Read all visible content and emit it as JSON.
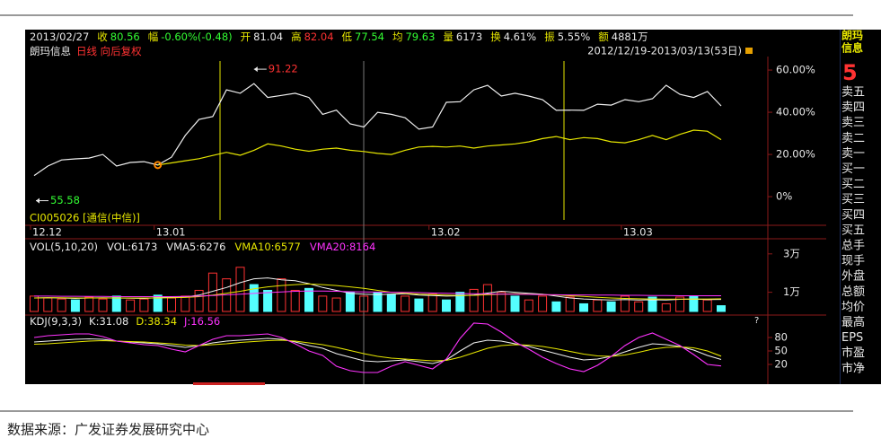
{
  "header": {
    "date": "2013/02/27",
    "items": [
      {
        "label": "收",
        "value": "80.56",
        "color": "#33ff33"
      },
      {
        "label": "幅",
        "value": "-0.60%(-0.48)",
        "color": "#33ff33"
      },
      {
        "label": "开",
        "value": "81.04",
        "color": "#e8e8e8"
      },
      {
        "label": "高",
        "value": "82.04",
        "color": "#ff3232"
      },
      {
        "label": "低",
        "value": "77.54",
        "color": "#33ff33"
      },
      {
        "label": "均",
        "value": "79.63",
        "color": "#33ff33"
      },
      {
        "label": "量",
        "value": "6173",
        "color": "#e8e8e8"
      },
      {
        "label": "换",
        "value": "4.61%",
        "color": "#e8e8e8"
      },
      {
        "label": "振",
        "value": "5.55%",
        "color": "#e8e8e8"
      },
      {
        "label": "额",
        "value": "4881万",
        "color": "#e8e8e8"
      }
    ],
    "stock": "朗玛信息",
    "mode": "日线 向后复权",
    "range": "2012/12/19-2013/03/13(53日)"
  },
  "price_panel": {
    "categories": [
      "12.12",
      null,
      null,
      null,
      null,
      null,
      null,
      null,
      null,
      "13.01",
      null,
      null,
      null,
      null,
      null,
      null,
      null,
      null,
      null,
      null,
      null,
      null,
      null,
      null,
      null,
      null,
      null,
      null,
      null,
      "13.02",
      null,
      null,
      null,
      null,
      null,
      null,
      null,
      null,
      null,
      null,
      null,
      null,
      null,
      "13.03",
      null,
      null,
      null,
      null,
      null,
      null,
      null
    ],
    "ylim": [
      -12.3,
      66.4
    ],
    "yticks": [
      {
        "value": 60,
        "label": "60.00%"
      },
      {
        "value": 40,
        "label": "40.00%"
      },
      {
        "value": 20,
        "label": "20.00%"
      },
      {
        "value": 0,
        "label": "0%"
      }
    ],
    "series": [
      {
        "color": "#f0f0f0",
        "values": [
          10,
          14.5,
          17.4,
          17.9,
          18.3,
          20,
          14.5,
          16.2,
          16.6,
          15,
          18.7,
          29,
          36.6,
          38,
          50.6,
          49,
          53.6,
          47,
          48,
          49,
          47,
          39,
          41,
          34.5,
          33,
          40,
          39,
          37.4,
          32,
          33,
          44.7,
          45,
          50.6,
          52.8,
          47.7,
          49,
          47.7,
          46,
          40.9,
          41,
          40.9,
          43.8,
          43.4,
          46,
          45,
          46.4,
          52.8,
          48.5,
          47,
          49.8,
          43
        ]
      },
      {
        "name": "CI005026 [通信(中信)]",
        "color": "#e6e600",
        "values": [
          null,
          null,
          null,
          null,
          null,
          null,
          null,
          null,
          null,
          15,
          16,
          17,
          18,
          19.5,
          21,
          19.6,
          22,
          25,
          24,
          22.5,
          21.5,
          22.5,
          23,
          22,
          21.4,
          20.5,
          20,
          22,
          23.5,
          23.8,
          23.5,
          24,
          23,
          24,
          24.5,
          25,
          26,
          27.5,
          28.5,
          27,
          28,
          27.5,
          26,
          25.5,
          27,
          29,
          27,
          29.5,
          31.5,
          31,
          27
        ]
      }
    ],
    "annotations": [
      {
        "label": "91.22",
        "color": "#ff3232",
        "index": 16
      },
      {
        "label": "55.58",
        "color": "#33ff33",
        "index": 0
      }
    ]
  },
  "volume_panel": {
    "title": "VOL(5,10,20)",
    "labels": [
      {
        "text": "VOL:6173",
        "color": "#e8e8e8"
      },
      {
        "text": "VMA5:6276",
        "color": "#e8e8e8"
      },
      {
        "text": "VMA10:6577",
        "color": "#e6e600"
      },
      {
        "text": "VMA20:8164",
        "color": "#ff33ff"
      }
    ],
    "ylim": [
      0,
      36000
    ],
    "yticks": [
      {
        "value": 30000,
        "label": "3万"
      },
      {
        "value": 10000,
        "label": "1万"
      }
    ],
    "values": [
      8000,
      7000,
      6500,
      6000,
      7500,
      6500,
      8000,
      6000,
      6500,
      8500,
      7000,
      8000,
      11000,
      20000,
      17000,
      23000,
      14000,
      11000,
      17000,
      11000,
      12000,
      8000,
      7000,
      10000,
      8000,
      10000,
      9000,
      8000,
      6500,
      9000,
      6000,
      10000,
      11500,
      14000,
      10000,
      8000,
      6000,
      8000,
      5000,
      7500,
      4000,
      6000,
      5000,
      8000,
      5000,
      7500,
      4000,
      7500,
      8000,
      6000,
      3000
    ],
    "bar_colors": [
      "#ff3232",
      "#ff3232",
      "#ff3232",
      "#54ffff",
      "#ff3232",
      "#ff3232",
      "#54ffff",
      "#ff3232",
      "#ff3232",
      "#54ffff",
      "#ff3232",
      "#ff3232",
      "#ff3232",
      "#ff3232",
      "#ff3232",
      "#ff3232",
      "#54ffff",
      "#54ffff",
      "#ff3232",
      "#ff3232",
      "#54ffff",
      "#ff3232",
      "#ff3232",
      "#54ffff",
      "#ff3232",
      "#54ffff",
      "#54ffff",
      "#ff3232",
      "#54ffff",
      "#ff3232",
      "#54ffff",
      "#54ffff",
      "#ff3232",
      "#ff3232",
      "#ff3232",
      "#54ffff",
      "#ff3232",
      "#ff3232",
      "#54ffff",
      "#ff3232",
      "#54ffff",
      "#ff3232",
      "#54ffff",
      "#ff3232",
      "#ff3232",
      "#54ffff",
      "#ff3232",
      "#ff3232",
      "#54ffff",
      "#ff3232",
      "#54ffff"
    ],
    "lines": [
      {
        "color": "#f0f0f0",
        "values": [
          7000,
          7200,
          7000,
          6800,
          7000,
          7100,
          7000,
          6900,
          6800,
          7200,
          7300,
          7500,
          8500,
          10500,
          12500,
          15000,
          17000,
          17500,
          16500,
          16000,
          14500,
          12500,
          11000,
          9500,
          9000,
          8800,
          9000,
          9200,
          8500,
          8300,
          8000,
          8200,
          8600,
          9600,
          10500,
          10000,
          9500,
          9000,
          8000,
          7000,
          6500,
          6200,
          6000,
          6200,
          6000,
          6100,
          6000,
          6300,
          6400,
          6200,
          6276
        ]
      },
      {
        "color": "#e6e600",
        "values": [
          7000,
          7100,
          7100,
          7000,
          7000,
          7000,
          7000,
          7000,
          7000,
          7000,
          7100,
          7300,
          7700,
          8500,
          9500,
          10500,
          11800,
          12800,
          13500,
          14000,
          14300,
          14000,
          13500,
          12800,
          12000,
          11000,
          10000,
          9500,
          9000,
          8800,
          8500,
          8300,
          8400,
          8700,
          9000,
          9200,
          9000,
          8800,
          8600,
          8200,
          7800,
          7400,
          7000,
          6800,
          6600,
          6500,
          6400,
          6400,
          6500,
          6500,
          6577
        ]
      },
      {
        "color": "#ff33ff",
        "values": [
          8000,
          8000,
          7900,
          7900,
          7800,
          7800,
          7700,
          7700,
          7700,
          7700,
          7700,
          7800,
          8000,
          8300,
          8700,
          9000,
          9400,
          9800,
          10200,
          10500,
          10600,
          10600,
          10500,
          10300,
          10200,
          10100,
          10000,
          9900,
          9800,
          9600,
          9500,
          9300,
          9200,
          9100,
          9000,
          9000,
          8900,
          8800,
          8700,
          8600,
          8600,
          8500,
          8500,
          8400,
          8400,
          8300,
          8300,
          8200,
          8200,
          8200,
          8164
        ]
      }
    ]
  },
  "kdj_panel": {
    "title": "KDJ(9,3,3)",
    "labels": [
      {
        "text": "K:31.08",
        "color": "#e8e8e8"
      },
      {
        "text": "D:38.34",
        "color": "#e6e600"
      },
      {
        "text": "J:16.56",
        "color": "#ff33ff"
      }
    ],
    "ylim": [
      -24,
      128
    ],
    "yticks": [
      80,
      50,
      20
    ],
    "marker": "?",
    "lines": [
      {
        "color": "#f0f0f0",
        "values": [
          70,
          72,
          74,
          76,
          77,
          76,
          72,
          70,
          68,
          66,
          62,
          58,
          62,
          68,
          72,
          74,
          76,
          78,
          76,
          70,
          62,
          56,
          44,
          36,
          28,
          26,
          28,
          30,
          26,
          22,
          30,
          50,
          68,
          74,
          72,
          66,
          60,
          52,
          44,
          36,
          30,
          32,
          38,
          48,
          58,
          66,
          64,
          60,
          52,
          40,
          31.08
        ]
      },
      {
        "color": "#e6e600",
        "values": [
          65,
          66,
          68,
          70,
          72,
          73,
          72,
          71,
          70,
          68,
          66,
          63,
          62,
          64,
          66,
          69,
          71,
          73,
          74,
          72,
          68,
          64,
          58,
          51,
          44,
          38,
          34,
          32,
          30,
          28,
          29,
          36,
          46,
          56,
          62,
          64,
          63,
          60,
          55,
          49,
          43,
          39,
          38,
          41,
          47,
          54,
          58,
          59,
          57,
          50,
          38.34
        ]
      },
      {
        "color": "#ff33ff",
        "values": [
          80,
          84,
          86,
          88,
          88,
          82,
          72,
          68,
          64,
          62,
          54,
          48,
          62,
          76,
          84,
          84,
          86,
          88,
          80,
          66,
          50,
          40,
          16,
          6,
          2,
          2,
          16,
          26,
          18,
          10,
          32,
          78,
          112,
          110,
          92,
          70,
          54,
          36,
          22,
          10,
          4,
          18,
          38,
          62,
          80,
          90,
          76,
          62,
          42,
          20,
          16.56
        ]
      }
    ]
  },
  "side_panel": {
    "name": [
      "朗玛",
      "信息"
    ],
    "price": "5",
    "rows": [
      "卖五",
      "卖四",
      "卖三",
      "卖二",
      "卖一",
      "买一",
      "买二",
      "买三",
      "买四",
      "买五",
      "总手",
      "现手",
      "外盘",
      "总额",
      "均价",
      "最高",
      "EPS",
      "市盈",
      "市净"
    ]
  },
  "source": "数据来源：广发证券发展研究中心"
}
